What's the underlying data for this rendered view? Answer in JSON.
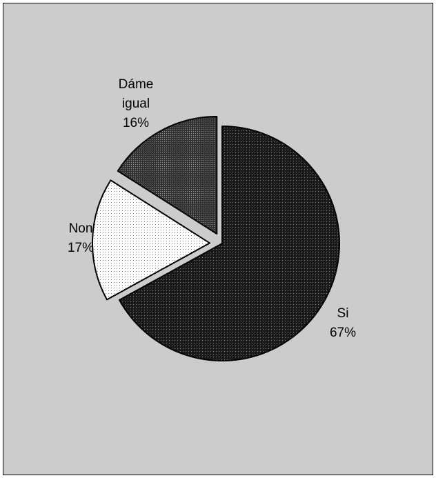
{
  "chart_data": {
    "type": "pie",
    "title": "",
    "legend": "none",
    "exploded": true,
    "slices": [
      {
        "name": "Si",
        "label_lines": [
          "Si",
          "67%"
        ],
        "value": 67,
        "pattern": "dark-dots"
      },
      {
        "name": "Non",
        "label_lines": [
          "Non",
          "17%"
        ],
        "value": 17,
        "pattern": "light-dots"
      },
      {
        "name": "Dáme igual",
        "label_lines": [
          "Dáme",
          "igual",
          "16%"
        ],
        "value": 16,
        "pattern": "medium-dots"
      }
    ]
  },
  "colors": {
    "background": "#cccccc",
    "border": "#000000",
    "slice_dark": "#1a1a1a",
    "slice_medium": "#333333",
    "slice_light": "#ffffff",
    "dot_on_dark": "#9a9a9a",
    "dot_on_light": "#7a7a7a"
  }
}
